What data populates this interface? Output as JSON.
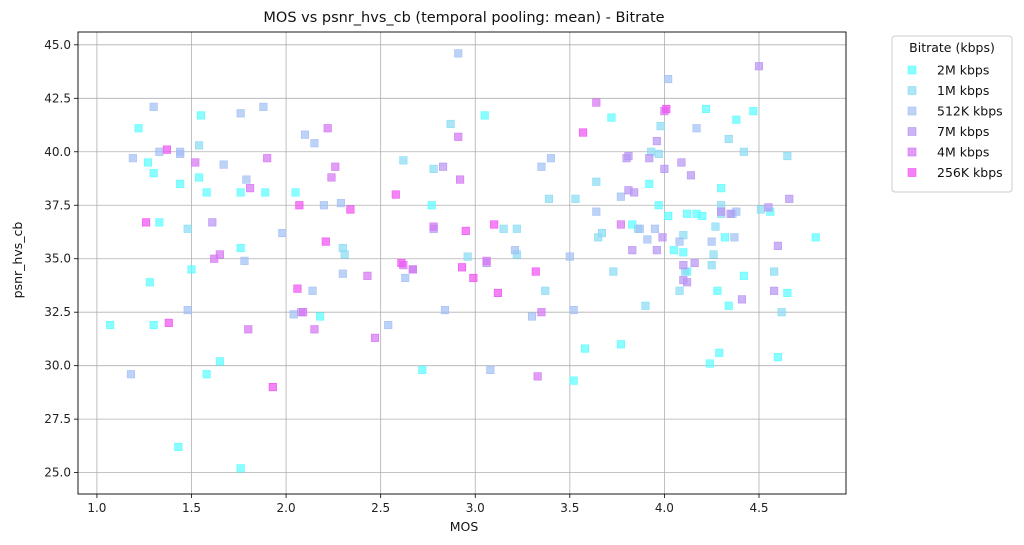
{
  "chart_data": {
    "type": "scatter",
    "title": "MOS vs psnr_hvs_cb (temporal pooling: mean) - Bitrate",
    "xlabel": "MOS",
    "ylabel": "psnr_hvs_cb",
    "xlim": [
      0.9,
      4.96
    ],
    "ylim": [
      24.0,
      45.6
    ],
    "xticks": [
      1.0,
      1.5,
      2.0,
      2.5,
      3.0,
      3.5,
      4.0,
      4.5
    ],
    "xtick_labels": [
      "1.0",
      "1.5",
      "2.0",
      "2.5",
      "3.0",
      "3.5",
      "4.0",
      "4.5"
    ],
    "yticks": [
      25.0,
      27.5,
      30.0,
      32.5,
      35.0,
      37.5,
      40.0,
      42.5,
      45.0
    ],
    "ytick_labels": [
      "25.0",
      "27.5",
      "30.0",
      "32.5",
      "35.0",
      "37.5",
      "40.0",
      "42.5",
      "45.0"
    ],
    "grid": true,
    "marker": "square",
    "legend": {
      "title": "Bitrate (kbps)",
      "placement": "outside-top-right"
    },
    "series": [
      {
        "name": "2M kbps",
        "color": "#5cfcff",
        "points": [
          [
            1.07,
            31.9
          ],
          [
            1.22,
            41.1
          ],
          [
            1.27,
            39.5
          ],
          [
            1.28,
            33.9
          ],
          [
            1.3,
            39.0
          ],
          [
            1.3,
            31.9
          ],
          [
            1.44,
            38.5
          ],
          [
            1.5,
            34.5
          ],
          [
            1.54,
            38.8
          ],
          [
            1.55,
            41.7
          ],
          [
            1.58,
            38.1
          ],
          [
            1.58,
            29.6
          ],
          [
            1.65,
            30.2
          ],
          [
            1.76,
            35.5
          ],
          [
            1.76,
            38.1
          ],
          [
            1.76,
            25.2
          ],
          [
            1.89,
            38.1
          ],
          [
            1.43,
            26.2
          ],
          [
            2.05,
            38.1
          ],
          [
            2.18,
            32.3
          ],
          [
            2.77,
            37.5
          ],
          [
            2.72,
            29.8
          ],
          [
            3.05,
            41.7
          ],
          [
            3.58,
            30.8
          ],
          [
            3.72,
            41.6
          ],
          [
            3.77,
            31.0
          ],
          [
            3.83,
            36.6
          ],
          [
            3.92,
            38.5
          ],
          [
            3.97,
            37.5
          ],
          [
            4.02,
            37.0
          ],
          [
            4.05,
            35.4
          ],
          [
            4.1,
            35.3
          ],
          [
            4.12,
            37.1
          ],
          [
            4.17,
            37.1
          ],
          [
            4.2,
            37.0
          ],
          [
            4.22,
            42.0
          ],
          [
            4.28,
            33.5
          ],
          [
            4.3,
            38.3
          ],
          [
            4.34,
            32.8
          ],
          [
            4.38,
            41.5
          ],
          [
            4.42,
            34.2
          ],
          [
            4.47,
            41.9
          ],
          [
            4.56,
            37.2
          ],
          [
            4.6,
            30.4
          ],
          [
            4.65,
            33.4
          ],
          [
            4.8,
            36.0
          ],
          [
            4.29,
            30.6
          ],
          [
            4.24,
            30.1
          ],
          [
            4.32,
            36.0
          ],
          [
            4.12,
            34.4
          ],
          [
            3.52,
            29.3
          ],
          [
            1.33,
            36.7
          ]
        ]
      },
      {
        "name": "1M kbps",
        "color": "#8adcf4",
        "points": [
          [
            1.48,
            36.4
          ],
          [
            1.54,
            40.3
          ],
          [
            2.3,
            35.5
          ],
          [
            2.31,
            35.2
          ],
          [
            2.62,
            39.6
          ],
          [
            2.78,
            39.2
          ],
          [
            2.87,
            41.3
          ],
          [
            2.96,
            35.1
          ],
          [
            3.15,
            36.4
          ],
          [
            3.22,
            36.4
          ],
          [
            3.22,
            35.2
          ],
          [
            3.37,
            33.5
          ],
          [
            3.39,
            37.8
          ],
          [
            3.53,
            37.8
          ],
          [
            3.64,
            38.6
          ],
          [
            3.65,
            36.0
          ],
          [
            3.67,
            36.2
          ],
          [
            3.73,
            34.4
          ],
          [
            3.86,
            36.4
          ],
          [
            3.9,
            32.8
          ],
          [
            3.97,
            39.9
          ],
          [
            3.98,
            41.2
          ],
          [
            4.08,
            33.5
          ],
          [
            4.1,
            36.1
          ],
          [
            4.11,
            34.4
          ],
          [
            4.25,
            34.7
          ],
          [
            4.26,
            35.2
          ],
          [
            4.27,
            36.5
          ],
          [
            4.3,
            37.5
          ],
          [
            4.34,
            40.6
          ],
          [
            4.36,
            37.1
          ],
          [
            4.42,
            40.0
          ],
          [
            4.51,
            37.3
          ],
          [
            4.58,
            34.4
          ],
          [
            4.62,
            32.5
          ],
          [
            4.65,
            39.8
          ],
          [
            4.3,
            37.1
          ],
          [
            3.93,
            40.0
          ]
        ]
      },
      {
        "name": "512K kbps",
        "color": "#a4c0f4",
        "points": [
          [
            1.18,
            29.6
          ],
          [
            1.19,
            39.7
          ],
          [
            1.3,
            42.1
          ],
          [
            1.33,
            40.0
          ],
          [
            1.44,
            40.0
          ],
          [
            1.44,
            39.9
          ],
          [
            1.48,
            32.6
          ],
          [
            1.67,
            39.4
          ],
          [
            1.76,
            41.8
          ],
          [
            1.78,
            34.9
          ],
          [
            1.79,
            38.7
          ],
          [
            1.88,
            42.1
          ],
          [
            1.98,
            36.2
          ],
          [
            2.04,
            32.4
          ],
          [
            2.1,
            40.8
          ],
          [
            2.14,
            33.5
          ],
          [
            2.15,
            40.4
          ],
          [
            2.2,
            37.5
          ],
          [
            2.29,
            37.6
          ],
          [
            2.3,
            34.3
          ],
          [
            2.54,
            31.9
          ],
          [
            2.63,
            34.1
          ],
          [
            2.84,
            32.6
          ],
          [
            2.91,
            44.6
          ],
          [
            3.08,
            29.8
          ],
          [
            3.21,
            35.4
          ],
          [
            3.3,
            32.3
          ],
          [
            3.35,
            39.3
          ],
          [
            3.4,
            39.7
          ],
          [
            3.5,
            35.1
          ],
          [
            3.52,
            32.6
          ],
          [
            3.64,
            37.2
          ],
          [
            3.77,
            37.9
          ],
          [
            3.87,
            36.4
          ],
          [
            3.91,
            35.9
          ],
          [
            3.95,
            36.4
          ],
          [
            4.02,
            43.4
          ],
          [
            4.08,
            35.8
          ],
          [
            4.17,
            41.1
          ],
          [
            4.25,
            35.8
          ],
          [
            4.37,
            36.0
          ],
          [
            4.38,
            37.2
          ]
        ]
      },
      {
        "name": "7M kbps",
        "color": "#b894f2",
        "points": [
          [
            1.61,
            36.7
          ],
          [
            2.08,
            32.5
          ],
          [
            2.67,
            34.5
          ],
          [
            2.78,
            36.4
          ],
          [
            2.83,
            39.3
          ],
          [
            3.06,
            34.8
          ],
          [
            3.8,
            39.7
          ],
          [
            3.81,
            38.2
          ],
          [
            3.83,
            35.4
          ],
          [
            3.84,
            38.1
          ],
          [
            3.92,
            39.7
          ],
          [
            3.96,
            40.5
          ],
          [
            3.96,
            35.4
          ],
          [
            3.99,
            36.0
          ],
          [
            4.09,
            39.5
          ],
          [
            4.1,
            34.7
          ],
          [
            4.12,
            33.9
          ],
          [
            4.14,
            38.9
          ],
          [
            4.16,
            34.8
          ],
          [
            4.3,
            37.2
          ],
          [
            4.41,
            33.1
          ],
          [
            4.5,
            44.0
          ],
          [
            4.55,
            37.4
          ],
          [
            4.58,
            33.5
          ],
          [
            4.6,
            35.6
          ],
          [
            4.66,
            37.8
          ],
          [
            4.1,
            34.0
          ],
          [
            4.35,
            37.1
          ],
          [
            3.81,
            39.8
          ],
          [
            4.0,
            39.2
          ]
        ]
      },
      {
        "name": "4M kbps",
        "color": "#d676f2",
        "points": [
          [
            1.52,
            39.5
          ],
          [
            1.62,
            35.0
          ],
          [
            1.65,
            35.2
          ],
          [
            1.8,
            31.7
          ],
          [
            1.81,
            38.3
          ],
          [
            1.9,
            39.7
          ],
          [
            2.09,
            32.5
          ],
          [
            2.15,
            31.7
          ],
          [
            2.22,
            41.1
          ],
          [
            2.24,
            38.8
          ],
          [
            2.26,
            39.3
          ],
          [
            2.43,
            34.2
          ],
          [
            2.47,
            31.3
          ],
          [
            2.62,
            34.7
          ],
          [
            2.67,
            34.5
          ],
          [
            2.78,
            36.5
          ],
          [
            2.91,
            40.7
          ],
          [
            2.92,
            38.7
          ],
          [
            3.06,
            34.9
          ],
          [
            3.33,
            29.5
          ],
          [
            3.35,
            32.5
          ],
          [
            3.64,
            42.3
          ],
          [
            3.77,
            36.6
          ],
          [
            4.0,
            41.9
          ]
        ]
      },
      {
        "name": "256K kbps",
        "color": "#f053f2",
        "points": [
          [
            1.26,
            36.7
          ],
          [
            1.37,
            40.1
          ],
          [
            1.38,
            32.0
          ],
          [
            1.93,
            29.0
          ],
          [
            2.06,
            33.6
          ],
          [
            2.07,
            37.5
          ],
          [
            2.21,
            35.8
          ],
          [
            2.34,
            37.3
          ],
          [
            2.58,
            38.0
          ],
          [
            2.61,
            34.8
          ],
          [
            2.93,
            34.6
          ],
          [
            2.95,
            36.3
          ],
          [
            2.99,
            34.1
          ],
          [
            3.1,
            36.6
          ],
          [
            3.12,
            33.4
          ],
          [
            3.32,
            34.4
          ],
          [
            3.57,
            40.9
          ],
          [
            4.01,
            42.0
          ]
        ]
      }
    ]
  }
}
